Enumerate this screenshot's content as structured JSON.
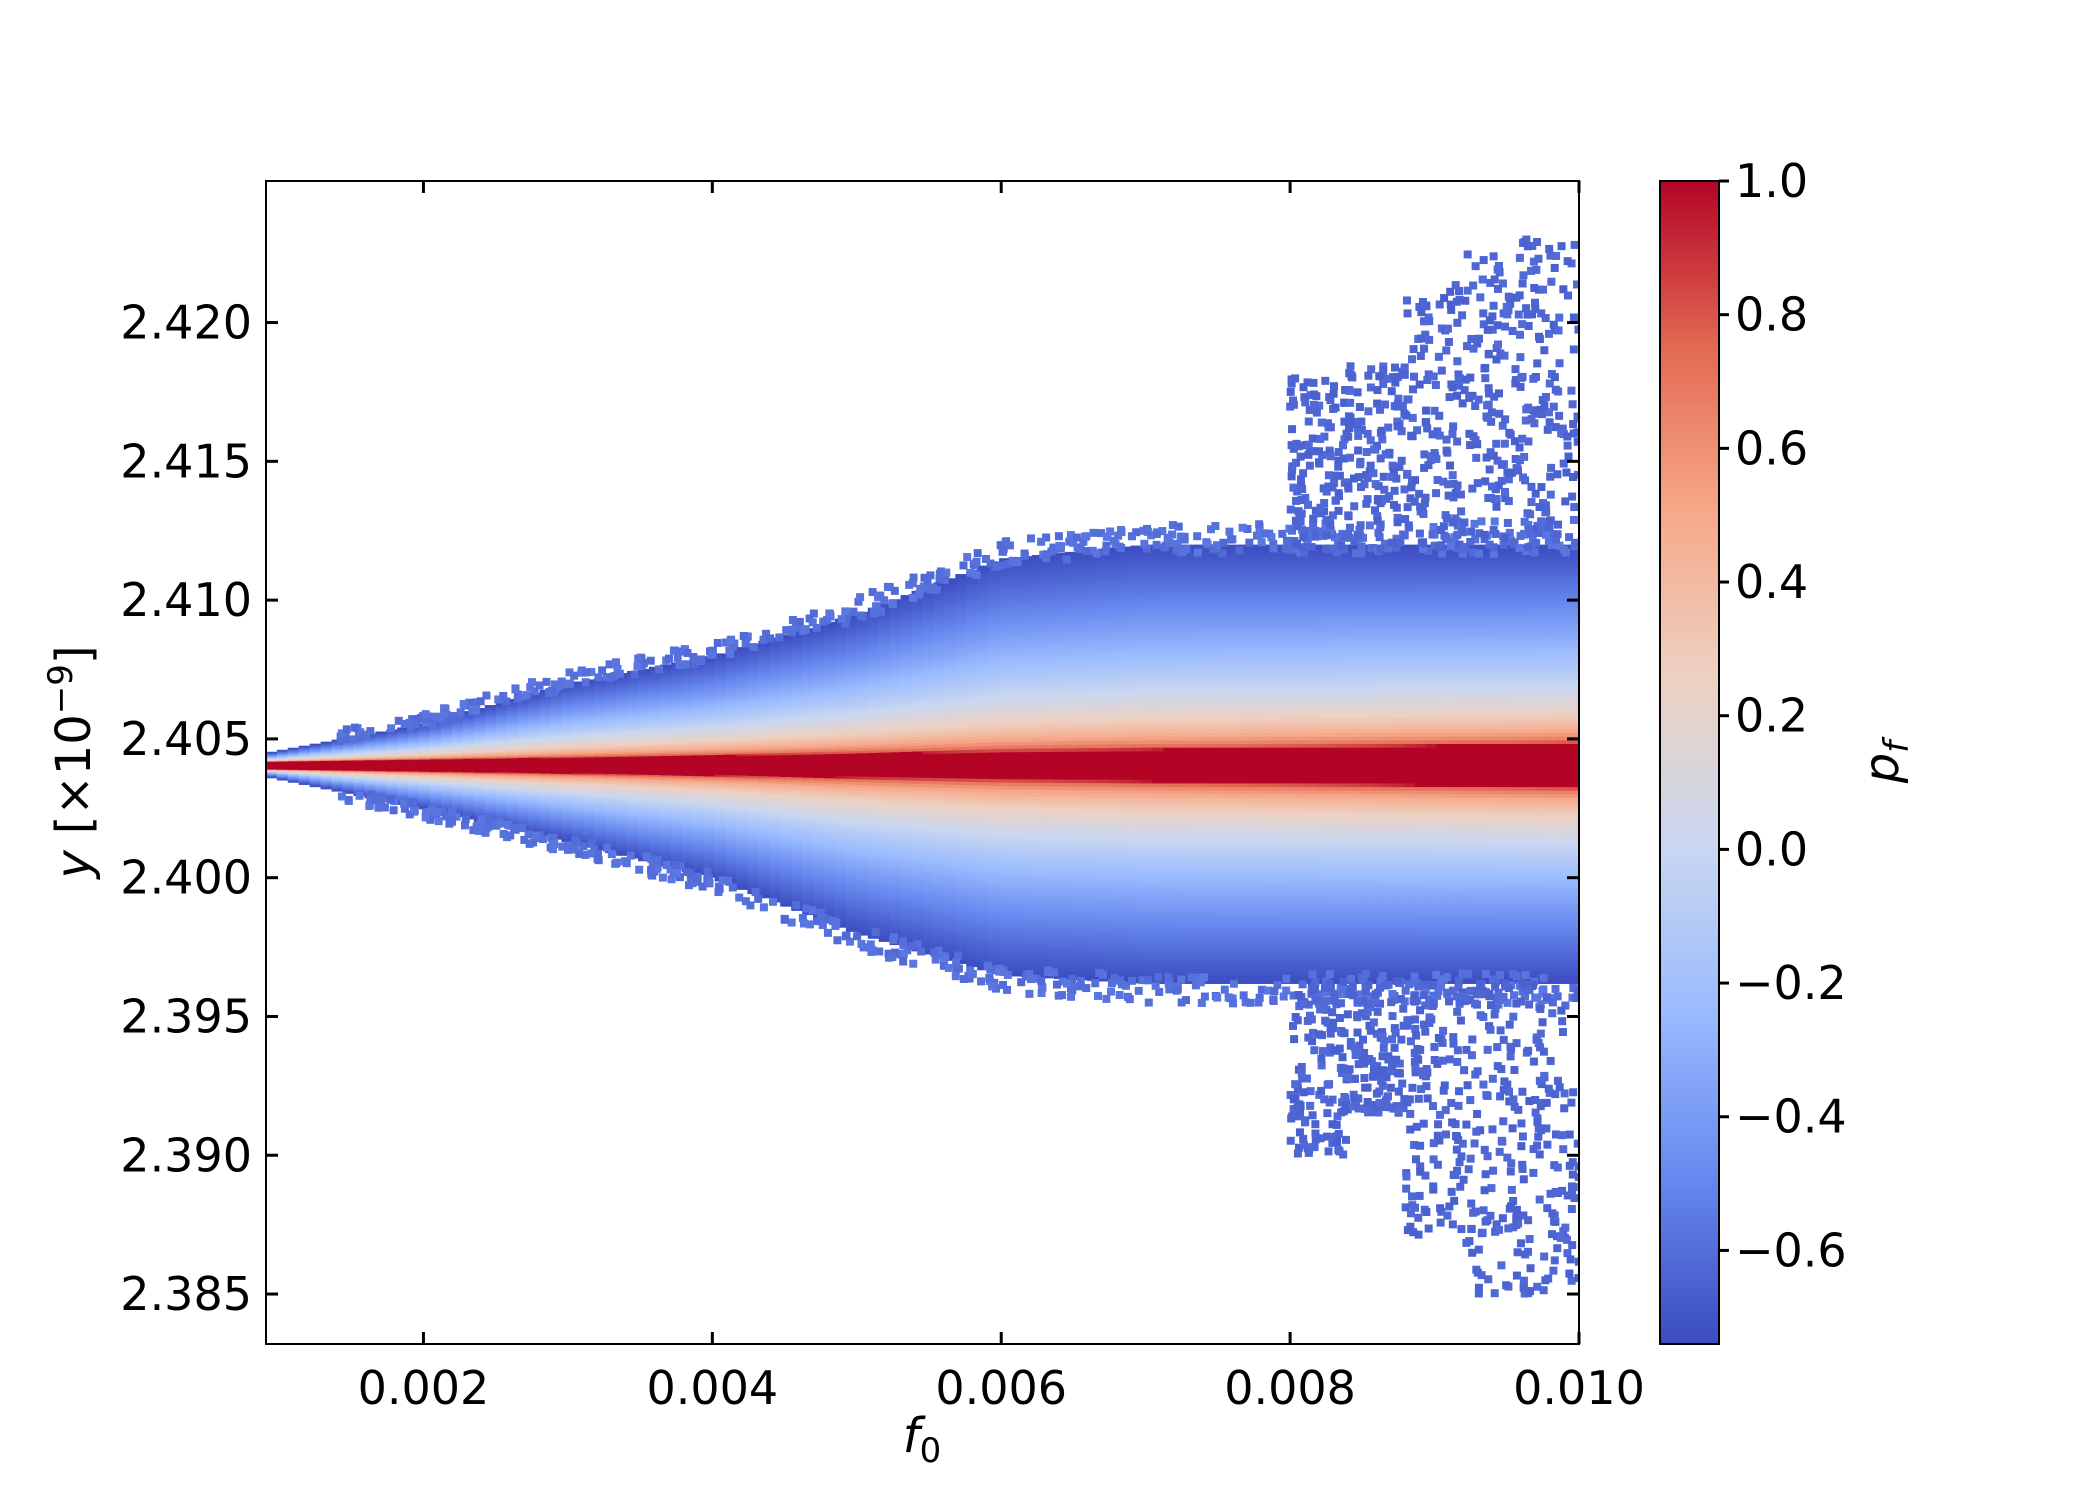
{
  "chart_data": {
    "type": "scatter",
    "title": "",
    "xlabel": "f",
    "xlabel_sub": "0",
    "ylabel": "y",
    "ylabel_scale_prefix": "[×10",
    "ylabel_scale_exp": "−9",
    "ylabel_scale_suffix": "]",
    "xlim": [
      0.00091,
      0.01
    ],
    "ylim": [
      2.3832,
      2.4251
    ],
    "x_ticks": [
      0.002,
      0.004,
      0.006,
      0.008,
      0.01
    ],
    "x_tick_labels": [
      "0.002",
      "0.004",
      "0.006",
      "0.008",
      "0.010"
    ],
    "y_ticks": [
      2.385,
      2.39,
      2.395,
      2.4,
      2.405,
      2.41,
      2.415,
      2.42
    ],
    "y_tick_labels": [
      "2.385",
      "2.390",
      "2.395",
      "2.400",
      "2.405",
      "2.410",
      "2.415",
      "2.420"
    ],
    "grid": false,
    "colormap": "coolwarm",
    "color_range": [
      -0.74,
      1.0
    ],
    "colorbar": {
      "label": "p",
      "label_sub": "f",
      "ticks": [
        1.0,
        0.8,
        0.6,
        0.4,
        0.2,
        0.0,
        -0.2,
        -0.4,
        -0.6
      ],
      "tick_labels": [
        "1.0",
        "0.8",
        "0.6",
        "0.4",
        "0.2",
        "0.0",
        "−0.2",
        "−0.4",
        "−0.6"
      ],
      "stops": [
        "#3b4cc0",
        "#6788ee",
        "#9abbff",
        "#c9d7f0",
        "#edd1c2",
        "#f7a889",
        "#e26952",
        "#b40426"
      ]
    },
    "center_line_y": 2.40405,
    "envelope": [
      {
        "x": 0.00091,
        "y_max": 2.4045,
        "y_min": 2.40365
      },
      {
        "x": 0.002,
        "y_max": 2.40555,
        "y_min": 2.4025
      },
      {
        "x": 0.003,
        "y_max": 2.407,
        "y_min": 2.4013
      },
      {
        "x": 0.004,
        "y_max": 2.408,
        "y_min": 2.4
      },
      {
        "x": 0.005,
        "y_max": 2.4095,
        "y_min": 2.398
      },
      {
        "x": 0.006,
        "y_max": 2.4115,
        "y_min": 2.3965
      },
      {
        "x": 0.007,
        "y_max": 2.412,
        "y_min": 2.3962
      },
      {
        "x": 0.008,
        "y_max": 2.412,
        "y_min": 2.3962
      },
      {
        "x": 0.009,
        "y_max": 2.412,
        "y_min": 2.3962
      },
      {
        "x": 0.01,
        "y_max": 2.412,
        "y_min": 2.3962
      }
    ],
    "red_band_half_width": [
      {
        "x": 0.00091,
        "w": 0.00015
      },
      {
        "x": 0.01,
        "w": 0.0008
      }
    ],
    "scatter_outer": [
      {
        "x_start": 0.008,
        "x_end": 0.0084,
        "y_top": 2.418,
        "y_bottom": 2.39
      },
      {
        "x_start": 0.0084,
        "x_end": 0.0088,
        "y_top": 2.4185,
        "y_bottom": 2.3915
      },
      {
        "x_start": 0.0088,
        "x_end": 0.0092,
        "y_top": 2.4215,
        "y_bottom": 2.387
      },
      {
        "x_start": 0.0092,
        "x_end": 0.0096,
        "y_top": 2.4225,
        "y_bottom": 2.385
      },
      {
        "x_start": 0.0096,
        "x_end": 0.01,
        "y_top": 2.423,
        "y_bottom": 2.385
      }
    ]
  }
}
